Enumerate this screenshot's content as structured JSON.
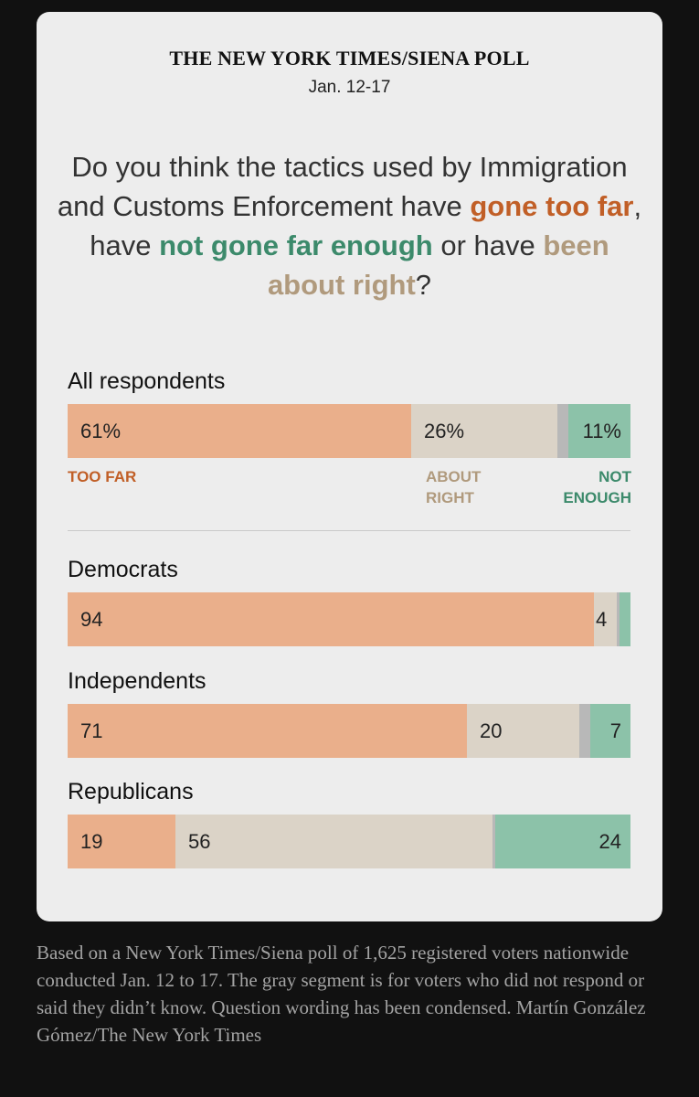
{
  "header": {
    "source": "THE NEW YORK TIMES/SIENA POLL",
    "date": "Jan. 12-17"
  },
  "question": {
    "part1": "Do you think the tactics used by Immigration and Customs Enforcement have ",
    "too_far": "gone too far",
    "part2": ", have ",
    "not_enough": "not gone far enough",
    "part3": " or have ",
    "about_right": "been about right",
    "part4": "?"
  },
  "legend": {
    "too_far": "TOO FAR",
    "about_right": "ABOUT RIGHT",
    "not_enough": "NOT ENOUGH"
  },
  "colors": {
    "too_far": "#eaaf8b",
    "about_right": "#dbd3c7",
    "no_answer": "#b8b8b8",
    "not_enough": "#8cc2a9"
  },
  "chart_data": {
    "type": "bar",
    "orientation": "horizontal-stacked",
    "title": "Do you think the tactics used by Immigration and Customs Enforcement have gone too far, have not gone far enough or have been about right?",
    "categories": [
      "All respondents",
      "Democrats",
      "Independents",
      "Republicans"
    ],
    "series": [
      {
        "name": "Too far",
        "values": [
          61,
          94,
          71,
          19
        ]
      },
      {
        "name": "About right",
        "values": [
          26,
          4,
          20,
          56
        ]
      },
      {
        "name": "Don't know / no response",
        "values": [
          2,
          0.5,
          2,
          0.5
        ]
      },
      {
        "name": "Not enough",
        "values": [
          11,
          2,
          7,
          24
        ]
      }
    ],
    "labels": {
      "all": {
        "too_far": "61%",
        "about_right": "26%",
        "not_enough": "11%"
      },
      "dem": {
        "too_far": "94",
        "about_right": "4"
      },
      "ind": {
        "too_far": "71",
        "about_right": "20",
        "not_enough": "7"
      },
      "rep": {
        "too_far": "19",
        "about_right": "56",
        "not_enough": "24"
      }
    },
    "xlim": [
      0,
      100
    ]
  },
  "footnote": "Based on a New York Times/Siena poll of 1,625 registered voters nationwide conducted Jan. 12 to 17.  The gray segment is for voters who did not respond or said they didn’t know. Question wording has been condensed.  Martín González Gómez/The New York Times"
}
